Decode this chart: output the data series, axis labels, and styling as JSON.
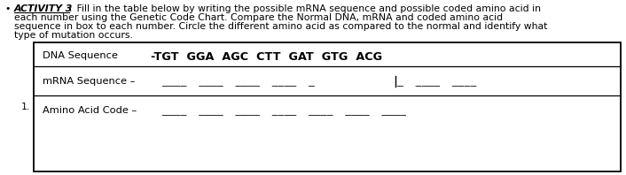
{
  "bullet": "•",
  "activity_label": "ACTIVITY 3",
  "activity_colon": ":",
  "line1": " Fill in the table below by writing the possible mRNA sequence and possible coded amino acid in",
  "line2": "each number using the Genetic Code Chart. Compare the Normal DNA, mRNA and coded amino acid",
  "line3": "sequence in box to each number. Circle the different amino acid as compared to the normal and identify what",
  "line4": "type of mutation occurs.",
  "row_number": "1.",
  "dna_label": "DNA Sequence",
  "dna_sequence": "-TGT  GGA  AGC  CTT  GAT  GTG  ACG",
  "mrna_label": "mRNA Sequence –",
  "amino_label": "Amino Acid Code –",
  "mrna_blanks_left": "____  ____  ____  ____  _",
  "mrna_blanks_right": "_  ____  ____",
  "amino_blanks": "____  ____  ____  ____  ____  ____  ____",
  "bg_color": "#ffffff",
  "text_color": "#000000",
  "box_color": "#000000",
  "fig_width": 7.06,
  "fig_height": 1.98,
  "dpi": 100
}
